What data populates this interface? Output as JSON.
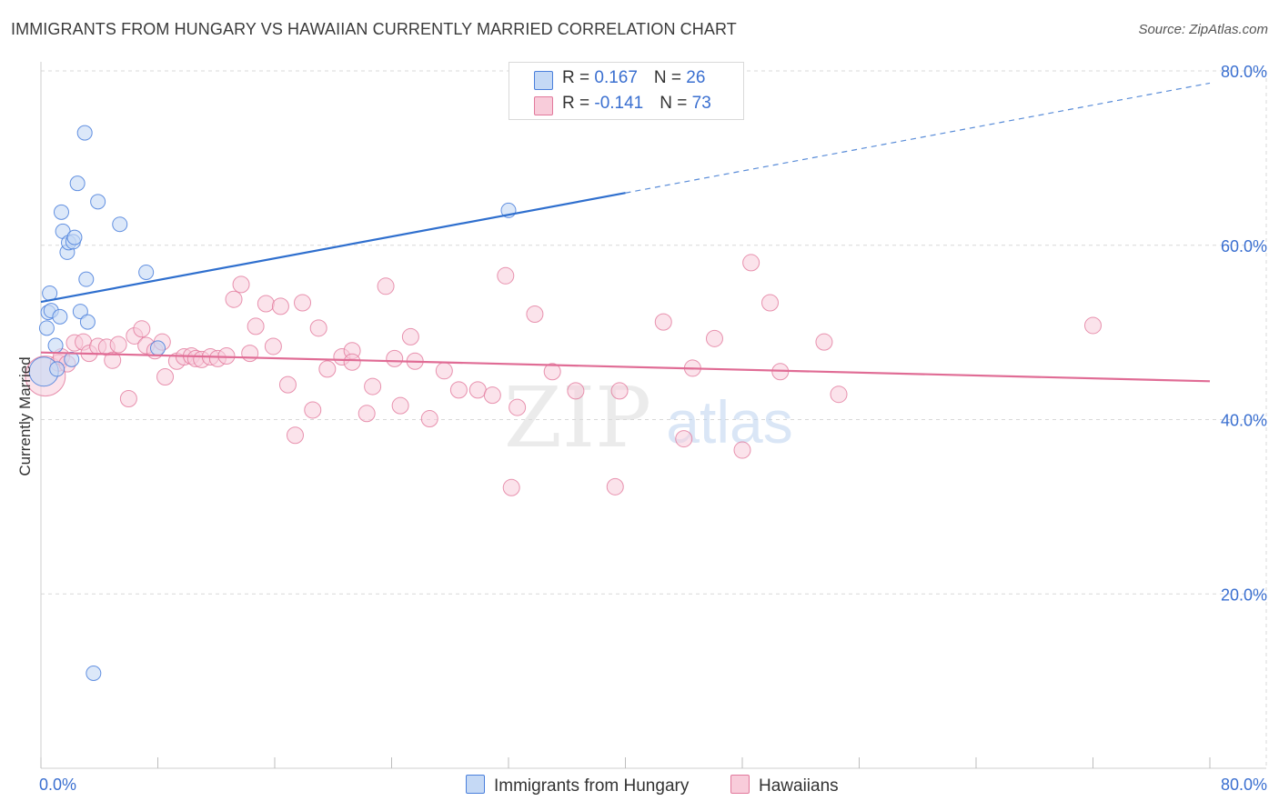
{
  "title": "IMMIGRANTS FROM HUNGARY VS HAWAIIAN CURRENTLY MARRIED CORRELATION CHART",
  "source": "Source: ZipAtlas.com",
  "colors": {
    "blue": "#4a7fdc",
    "blue_fill": "#c5d9f5",
    "blue_line": "#2f6fce",
    "pink": "#e2799c",
    "pink_fill": "#f8ccda",
    "pink_line": "#e06c95",
    "axis_label": "#3a6fd0",
    "grid": "#d8d8d8"
  },
  "legend": {
    "rows": [
      {
        "r_label": "R = ",
        "r_value": "0.167",
        "n_label": "N = ",
        "n_value": "26"
      },
      {
        "r_label": "R = ",
        "r_value": "-0.141",
        "n_label": "N = ",
        "n_value": "73"
      }
    ]
  },
  "bottom_legend": {
    "series1": "Immigrants from Hungary",
    "series2": "Hawaiians"
  },
  "watermark": {
    "zip": "ZIP",
    "atlas": "atlas"
  },
  "chart_data": {
    "type": "scatter",
    "xlabel": "",
    "ylabel": "Currently Married",
    "xlim": [
      0,
      80
    ],
    "ylim": [
      0,
      80
    ],
    "x_tick_labels": [
      "0.0%",
      "80.0%"
    ],
    "y_tick_values": [
      20,
      40,
      60,
      80
    ],
    "y_tick_labels": [
      "20.0%",
      "40.0%",
      "60.0%",
      "80.0%"
    ],
    "grid": true,
    "legend_position": "top-center",
    "series": [
      {
        "name": "Immigrants from Hungary",
        "R": 0.167,
        "N": 26,
        "trend": {
          "x0": 0,
          "y0": 53.5,
          "x1": 40,
          "y1": 66.0,
          "dashed_to_x": 80,
          "dashed_to_y": 78.6
        },
        "points": [
          [
            0.2,
            45.5
          ],
          [
            0.4,
            50.5
          ],
          [
            0.5,
            52.3
          ],
          [
            0.6,
            54.5
          ],
          [
            0.7,
            52.5
          ],
          [
            1.0,
            48.5
          ],
          [
            1.1,
            45.8
          ],
          [
            1.3,
            51.8
          ],
          [
            1.4,
            63.8
          ],
          [
            1.5,
            61.6
          ],
          [
            1.8,
            59.2
          ],
          [
            1.9,
            60.3
          ],
          [
            2.2,
            60.4
          ],
          [
            2.3,
            60.9
          ],
          [
            2.5,
            67.1
          ],
          [
            2.7,
            52.4
          ],
          [
            3.0,
            72.9
          ],
          [
            3.1,
            56.1
          ],
          [
            3.2,
            51.2
          ],
          [
            3.6,
            10.9
          ],
          [
            3.9,
            65.0
          ],
          [
            5.4,
            62.4
          ],
          [
            7.2,
            56.9
          ],
          [
            8.0,
            48.2
          ],
          [
            2.1,
            46.9
          ],
          [
            32.0,
            64.0
          ]
        ]
      },
      {
        "name": "Hawaiians",
        "R": -0.141,
        "N": 73,
        "trend": {
          "x0": 0,
          "y0": 47.7,
          "x1": 80,
          "y1": 44.4
        },
        "points": [
          [
            0.3,
            45.0
          ],
          [
            1.2,
            46.5
          ],
          [
            1.4,
            47.2
          ],
          [
            1.8,
            46.4
          ],
          [
            2.3,
            48.8
          ],
          [
            2.9,
            48.9
          ],
          [
            3.3,
            47.6
          ],
          [
            3.9,
            48.4
          ],
          [
            4.5,
            48.3
          ],
          [
            4.9,
            46.8
          ],
          [
            5.3,
            48.6
          ],
          [
            6.0,
            42.4
          ],
          [
            6.4,
            49.6
          ],
          [
            6.9,
            50.4
          ],
          [
            7.2,
            48.5
          ],
          [
            7.8,
            47.9
          ],
          [
            8.3,
            48.9
          ],
          [
            8.5,
            44.9
          ],
          [
            9.3,
            46.7
          ],
          [
            9.8,
            47.2
          ],
          [
            10.3,
            47.3
          ],
          [
            10.6,
            47.0
          ],
          [
            11.0,
            46.9
          ],
          [
            11.6,
            47.2
          ],
          [
            12.1,
            47.0
          ],
          [
            12.7,
            47.3
          ],
          [
            13.2,
            53.8
          ],
          [
            13.7,
            55.5
          ],
          [
            14.3,
            47.6
          ],
          [
            14.7,
            50.7
          ],
          [
            15.4,
            53.3
          ],
          [
            15.9,
            48.4
          ],
          [
            16.4,
            53.0
          ],
          [
            16.9,
            44.0
          ],
          [
            17.4,
            38.2
          ],
          [
            17.9,
            53.4
          ],
          [
            18.6,
            41.1
          ],
          [
            19.0,
            50.5
          ],
          [
            19.6,
            45.8
          ],
          [
            20.6,
            47.2
          ],
          [
            21.3,
            47.9
          ],
          [
            21.3,
            46.6
          ],
          [
            22.3,
            40.7
          ],
          [
            22.7,
            43.8
          ],
          [
            23.6,
            55.3
          ],
          [
            24.2,
            47.0
          ],
          [
            24.6,
            41.6
          ],
          [
            25.3,
            49.5
          ],
          [
            25.6,
            46.7
          ],
          [
            26.6,
            40.1
          ],
          [
            27.6,
            45.6
          ],
          [
            28.6,
            43.4
          ],
          [
            29.9,
            43.4
          ],
          [
            30.9,
            42.8
          ],
          [
            31.8,
            56.5
          ],
          [
            32.2,
            32.2
          ],
          [
            32.6,
            41.4
          ],
          [
            33.8,
            52.1
          ],
          [
            35.0,
            45.5
          ],
          [
            36.6,
            43.3
          ],
          [
            39.3,
            32.3
          ],
          [
            39.6,
            43.3
          ],
          [
            42.6,
            51.2
          ],
          [
            44.0,
            37.8
          ],
          [
            44.6,
            45.9
          ],
          [
            46.1,
            49.3
          ],
          [
            48.0,
            36.5
          ],
          [
            48.6,
            58.0
          ],
          [
            49.9,
            53.4
          ],
          [
            50.6,
            45.5
          ],
          [
            53.6,
            48.9
          ],
          [
            54.6,
            42.9
          ],
          [
            72.0,
            50.8
          ]
        ]
      }
    ]
  }
}
